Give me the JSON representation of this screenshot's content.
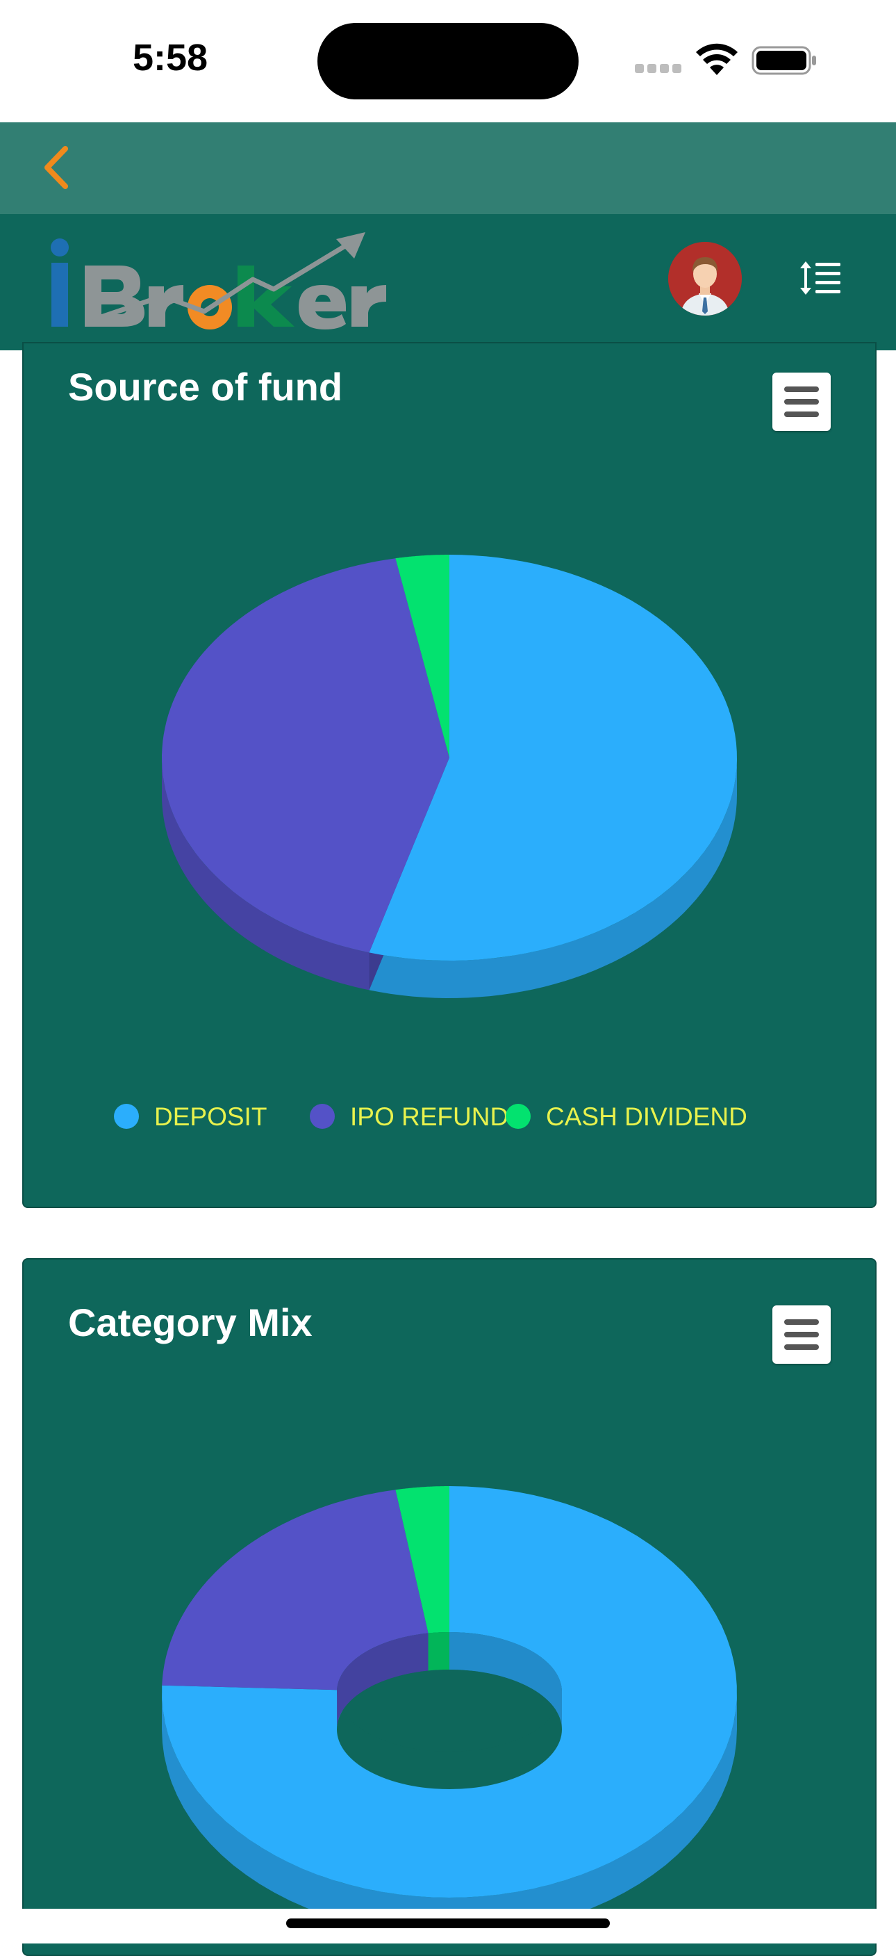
{
  "status_bar": {
    "time": "5:58"
  },
  "header": {
    "back_icon": "chevron-left-icon",
    "logo_text": "iBroker",
    "avatar": "user-avatar",
    "menu_icon": "sort-list-icon"
  },
  "colors": {
    "back_bar": "#327f73",
    "header": "#0e675b",
    "card": "#0e675b",
    "back_icon": "#f08a1c",
    "legend_text": "#e8f24d",
    "deposit": "#2baefc",
    "ipo_refund": "#5452c7",
    "cash_dividend": "#03e26f"
  },
  "cards": {
    "source_of_fund": {
      "title": "Source of fund",
      "menu_icon": "hamburger-icon"
    },
    "category_mix": {
      "title": "Category Mix",
      "menu_icon": "hamburger-icon"
    }
  },
  "chart_data": [
    {
      "type": "pie",
      "title": "Source of fund",
      "style": "3d",
      "categories": [
        "DEPOSIT",
        "IPO REFUND",
        "CASH DIVIDEND"
      ],
      "values": [
        54.5,
        42.5,
        3.0
      ],
      "colors": [
        "#2baefc",
        "#5452c7",
        "#03e26f"
      ],
      "legend": "bottom"
    },
    {
      "type": "pie",
      "title": "Category Mix",
      "style": "3d-donut",
      "values": [
        75.5,
        21.5,
        3.0
      ],
      "colors": [
        "#2baefc",
        "#5452c7",
        "#03e26f"
      ]
    }
  ]
}
